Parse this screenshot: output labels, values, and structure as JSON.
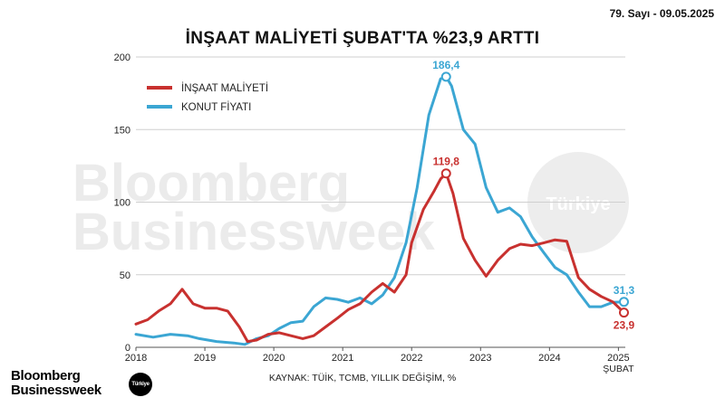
{
  "header": {
    "issue": "79. Sayı - 09.05.2025"
  },
  "chart_data": {
    "type": "line",
    "title": "İNŞAAT MALİYETİ ŞUBAT'TA %23,9 ARTTI",
    "source": "KAYNAK: TÜİK, TCMB, YILLIK DEĞİŞİM, %",
    "xlabel": "",
    "ylabel": "",
    "xlim": [
      2018,
      2025.1
    ],
    "ylim": [
      0,
      200
    ],
    "yticks": [
      0,
      50,
      100,
      150,
      200
    ],
    "xticks": [
      {
        "value": 2018,
        "label": "2018"
      },
      {
        "value": 2019,
        "label": "2019"
      },
      {
        "value": 2020,
        "label": "2020"
      },
      {
        "value": 2021,
        "label": "2021"
      },
      {
        "value": 2022,
        "label": "2022"
      },
      {
        "value": 2023,
        "label": "2023"
      },
      {
        "value": 2024,
        "label": "2024"
      },
      {
        "value": 2025,
        "label": "2025"
      }
    ],
    "xtick_sublabel": "ŞUBAT",
    "grid": true,
    "legend_position": "top-left",
    "series": [
      {
        "name": "İNŞAAT MALİYETİ",
        "color": "#c8312f",
        "points": [
          [
            2018.0,
            16
          ],
          [
            2018.17,
            19
          ],
          [
            2018.33,
            25
          ],
          [
            2018.5,
            30
          ],
          [
            2018.67,
            40
          ],
          [
            2018.83,
            30
          ],
          [
            2019.0,
            27
          ],
          [
            2019.17,
            27
          ],
          [
            2019.33,
            25
          ],
          [
            2019.5,
            14
          ],
          [
            2019.62,
            4
          ],
          [
            2019.75,
            5
          ],
          [
            2019.92,
            9
          ],
          [
            2020.08,
            10
          ],
          [
            2020.25,
            8
          ],
          [
            2020.42,
            6
          ],
          [
            2020.58,
            8
          ],
          [
            2020.75,
            14
          ],
          [
            2020.92,
            20
          ],
          [
            2021.08,
            26
          ],
          [
            2021.25,
            30
          ],
          [
            2021.42,
            38
          ],
          [
            2021.58,
            44
          ],
          [
            2021.75,
            38
          ],
          [
            2021.92,
            50
          ],
          [
            2022.0,
            72
          ],
          [
            2022.17,
            95
          ],
          [
            2022.33,
            108
          ],
          [
            2022.42,
            116
          ],
          [
            2022.5,
            119.8
          ],
          [
            2022.6,
            106
          ],
          [
            2022.75,
            75
          ],
          [
            2022.92,
            60
          ],
          [
            2023.08,
            49
          ],
          [
            2023.25,
            60
          ],
          [
            2023.42,
            68
          ],
          [
            2023.58,
            71
          ],
          [
            2023.75,
            70
          ],
          [
            2023.92,
            72
          ],
          [
            2024.08,
            74
          ],
          [
            2024.25,
            73
          ],
          [
            2024.42,
            48
          ],
          [
            2024.58,
            40
          ],
          [
            2024.75,
            35
          ],
          [
            2024.92,
            31.3
          ],
          [
            2025.08,
            23.9
          ]
        ]
      },
      {
        "name": "KONUT FİYATI",
        "color": "#3ba6d3",
        "points": [
          [
            2018.0,
            9
          ],
          [
            2018.25,
            7
          ],
          [
            2018.5,
            9
          ],
          [
            2018.75,
            8
          ],
          [
            2018.92,
            6
          ],
          [
            2019.17,
            4
          ],
          [
            2019.42,
            3
          ],
          [
            2019.58,
            2
          ],
          [
            2019.75,
            6
          ],
          [
            2019.92,
            8
          ],
          [
            2020.08,
            13
          ],
          [
            2020.25,
            17
          ],
          [
            2020.42,
            18
          ],
          [
            2020.58,
            28
          ],
          [
            2020.75,
            34
          ],
          [
            2020.92,
            33
          ],
          [
            2021.08,
            31
          ],
          [
            2021.25,
            34
          ],
          [
            2021.42,
            30
          ],
          [
            2021.58,
            36
          ],
          [
            2021.75,
            48
          ],
          [
            2021.92,
            72
          ],
          [
            2022.08,
            110
          ],
          [
            2022.25,
            160
          ],
          [
            2022.42,
            185
          ],
          [
            2022.5,
            186.4
          ],
          [
            2022.58,
            180
          ],
          [
            2022.75,
            150
          ],
          [
            2022.92,
            140
          ],
          [
            2023.08,
            110
          ],
          [
            2023.25,
            93
          ],
          [
            2023.42,
            96
          ],
          [
            2023.58,
            90
          ],
          [
            2023.75,
            76
          ],
          [
            2023.92,
            65
          ],
          [
            2024.08,
            55
          ],
          [
            2024.25,
            50
          ],
          [
            2024.42,
            38
          ],
          [
            2024.58,
            28
          ],
          [
            2024.75,
            28
          ],
          [
            2024.92,
            31
          ],
          [
            2025.08,
            31.3
          ]
        ]
      }
    ],
    "annotations": [
      {
        "series": 0,
        "x": 2022.5,
        "y": 119.8,
        "text": "119,8",
        "pos": "above"
      },
      {
        "series": 1,
        "x": 2022.5,
        "y": 186.4,
        "text": "186,4",
        "pos": "above"
      },
      {
        "series": 0,
        "x": 2025.08,
        "y": 23.9,
        "text": "23,9",
        "pos": "below"
      },
      {
        "series": 1,
        "x": 2025.08,
        "y": 31.3,
        "text": "31,3",
        "pos": "above"
      }
    ],
    "watermark": {
      "line1": "Bloomberg",
      "line2": "Businessweek",
      "badge": "Türkiye"
    }
  },
  "footer": {
    "logo_line1": "Bloomberg",
    "logo_line2": "Businessweek",
    "logo_badge": "Türkiye"
  }
}
